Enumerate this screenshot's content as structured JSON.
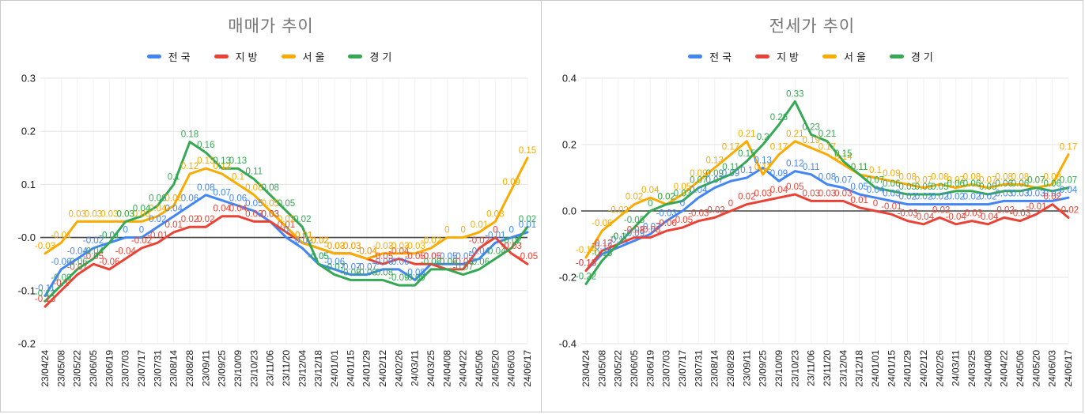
{
  "chart_data": [
    {
      "type": "line",
      "title": "매매가 추이",
      "legend_position": "top",
      "grid": true,
      "point_labels": true,
      "ylim": [
        -0.2,
        0.3
      ],
      "ytick_step": 0.1,
      "x": [
        "23/04/24",
        "23/05/08",
        "23/05/22",
        "23/06/05",
        "23/06/19",
        "23/07/03",
        "23/07/17",
        "23/07/31",
        "23/08/14",
        "23/08/28",
        "23/09/11",
        "23/09/25",
        "23/10/09",
        "23/10/23",
        "23/11/06",
        "23/11/20",
        "23/12/04",
        "23/12/18",
        "24/01/01",
        "24/01/15",
        "24/01/29",
        "24/02/12",
        "24/02/26",
        "24/03/11",
        "24/03/25",
        "24/04/08",
        "24/04/22",
        "24/05/06",
        "24/05/20",
        "24/06/03",
        "24/06/17"
      ],
      "series": [
        {
          "name": "전국",
          "color": "#4285F4",
          "values": [
            -0.11,
            -0.06,
            -0.04,
            -0.02,
            -0.01,
            0,
            0,
            0.02,
            0.04,
            0.06,
            0.08,
            0.07,
            0.06,
            0.05,
            0.03,
            0,
            -0.02,
            -0.05,
            -0.06,
            -0.07,
            -0.07,
            -0.06,
            -0.06,
            -0.08,
            -0.05,
            -0.05,
            -0.05,
            -0.04,
            -0.01,
            0,
            0.01
          ]
        },
        {
          "name": "지방",
          "color": "#EA4335",
          "values": [
            -0.13,
            -0.1,
            -0.07,
            -0.05,
            -0.06,
            -0.04,
            -0.02,
            -0.01,
            0.01,
            0.02,
            0.02,
            0.04,
            0.04,
            0.03,
            0.03,
            0.01,
            -0.01,
            -0.02,
            -0.03,
            -0.03,
            -0.04,
            -0.05,
            -0.04,
            -0.05,
            -0.05,
            -0.06,
            -0.06,
            -0.02,
            0,
            -0.03,
            -0.05
          ]
        },
        {
          "name": "서울",
          "color": "#F9AB00",
          "values": [
            -0.03,
            -0.01,
            0.03,
            0.03,
            0.03,
            0.03,
            0.03,
            0.04,
            0.06,
            0.12,
            0.13,
            0.12,
            0.1,
            0.08,
            0.05,
            0.02,
            -0.01,
            -0.02,
            -0.03,
            -0.03,
            -0.04,
            -0.03,
            -0.03,
            -0.03,
            -0.02,
            0,
            0,
            0.01,
            0.03,
            0.09,
            0.15
          ]
        },
        {
          "name": "경기",
          "color": "#34A853",
          "values": [
            -0.12,
            -0.09,
            -0.06,
            -0.04,
            -0.01,
            0.03,
            0.04,
            0.06,
            0.1,
            0.18,
            0.16,
            0.13,
            0.13,
            0.11,
            0.08,
            0.05,
            0.02,
            -0.05,
            -0.07,
            -0.08,
            -0.08,
            -0.08,
            -0.09,
            -0.09,
            -0.06,
            -0.06,
            -0.07,
            -0.06,
            -0.04,
            -0.02,
            0.02
          ]
        }
      ]
    },
    {
      "type": "line",
      "title": "전세가 추이",
      "legend_position": "top",
      "grid": true,
      "point_labels": true,
      "ylim": [
        -0.4,
        0.4
      ],
      "ytick_step": 0.2,
      "x": [
        "23/04/24",
        "23/05/08",
        "23/05/22",
        "23/06/05",
        "23/06/19",
        "23/07/03",
        "23/07/17",
        "23/07/31",
        "23/08/14",
        "23/08/28",
        "23/09/11",
        "23/09/25",
        "23/10/09",
        "23/10/23",
        "23/11/06",
        "23/11/20",
        "23/12/04",
        "23/12/18",
        "24/01/01",
        "24/01/15",
        "24/01/29",
        "24/02/12",
        "24/02/26",
        "24/03/11",
        "24/03/25",
        "24/04/08",
        "24/04/22",
        "24/05/06",
        "24/05/20",
        "24/06/03",
        "24/06/17"
      ],
      "series": [
        {
          "name": "전국",
          "color": "#4285F4",
          "values": [
            -0.18,
            -0.13,
            -0.11,
            -0.09,
            -0.07,
            -0.03,
            0,
            0.04,
            0.07,
            0.09,
            0.1,
            0.13,
            0.09,
            0.12,
            0.11,
            0.08,
            0.07,
            0.05,
            0.04,
            0.03,
            0.02,
            0.02,
            0.02,
            0.02,
            0.02,
            0.02,
            0.03,
            0.03,
            0.03,
            0.03,
            0.04
          ]
        },
        {
          "name": "지방",
          "color": "#EA4335",
          "values": [
            -0.18,
            -0.12,
            -0.1,
            -0.08,
            -0.08,
            -0.06,
            -0.05,
            -0.03,
            -0.02,
            0,
            0.02,
            0.03,
            0.04,
            0.05,
            0.03,
            0.03,
            0.03,
            0.01,
            0,
            -0.01,
            -0.03,
            -0.04,
            -0.02,
            -0.04,
            -0.03,
            -0.04,
            -0.02,
            -0.03,
            -0.01,
            0.02,
            -0.02
          ]
        },
        {
          "name": "서울",
          "color": "#F9AB00",
          "values": [
            -0.14,
            -0.06,
            -0.02,
            0.02,
            0.04,
            0.02,
            0.05,
            0.09,
            0.13,
            0.17,
            0.21,
            0.11,
            0.17,
            0.21,
            0.19,
            0.17,
            0.14,
            0.11,
            0.1,
            0.09,
            0.08,
            0.07,
            0.08,
            0.07,
            0.08,
            0.07,
            0.08,
            0.08,
            0.07,
            0.08,
            0.17
          ]
        },
        {
          "name": "경기",
          "color": "#34A853",
          "values": [
            -0.22,
            -0.15,
            -0.1,
            -0.05,
            0,
            0.02,
            0.03,
            0.07,
            0.09,
            0.11,
            0.15,
            0.2,
            0.26,
            0.33,
            0.23,
            0.21,
            0.15,
            0.11,
            0.07,
            0.06,
            0.05,
            0.05,
            0.05,
            0.06,
            0.06,
            0.05,
            0.06,
            0.06,
            0.07,
            0.06,
            0.07
          ]
        }
      ]
    }
  ]
}
